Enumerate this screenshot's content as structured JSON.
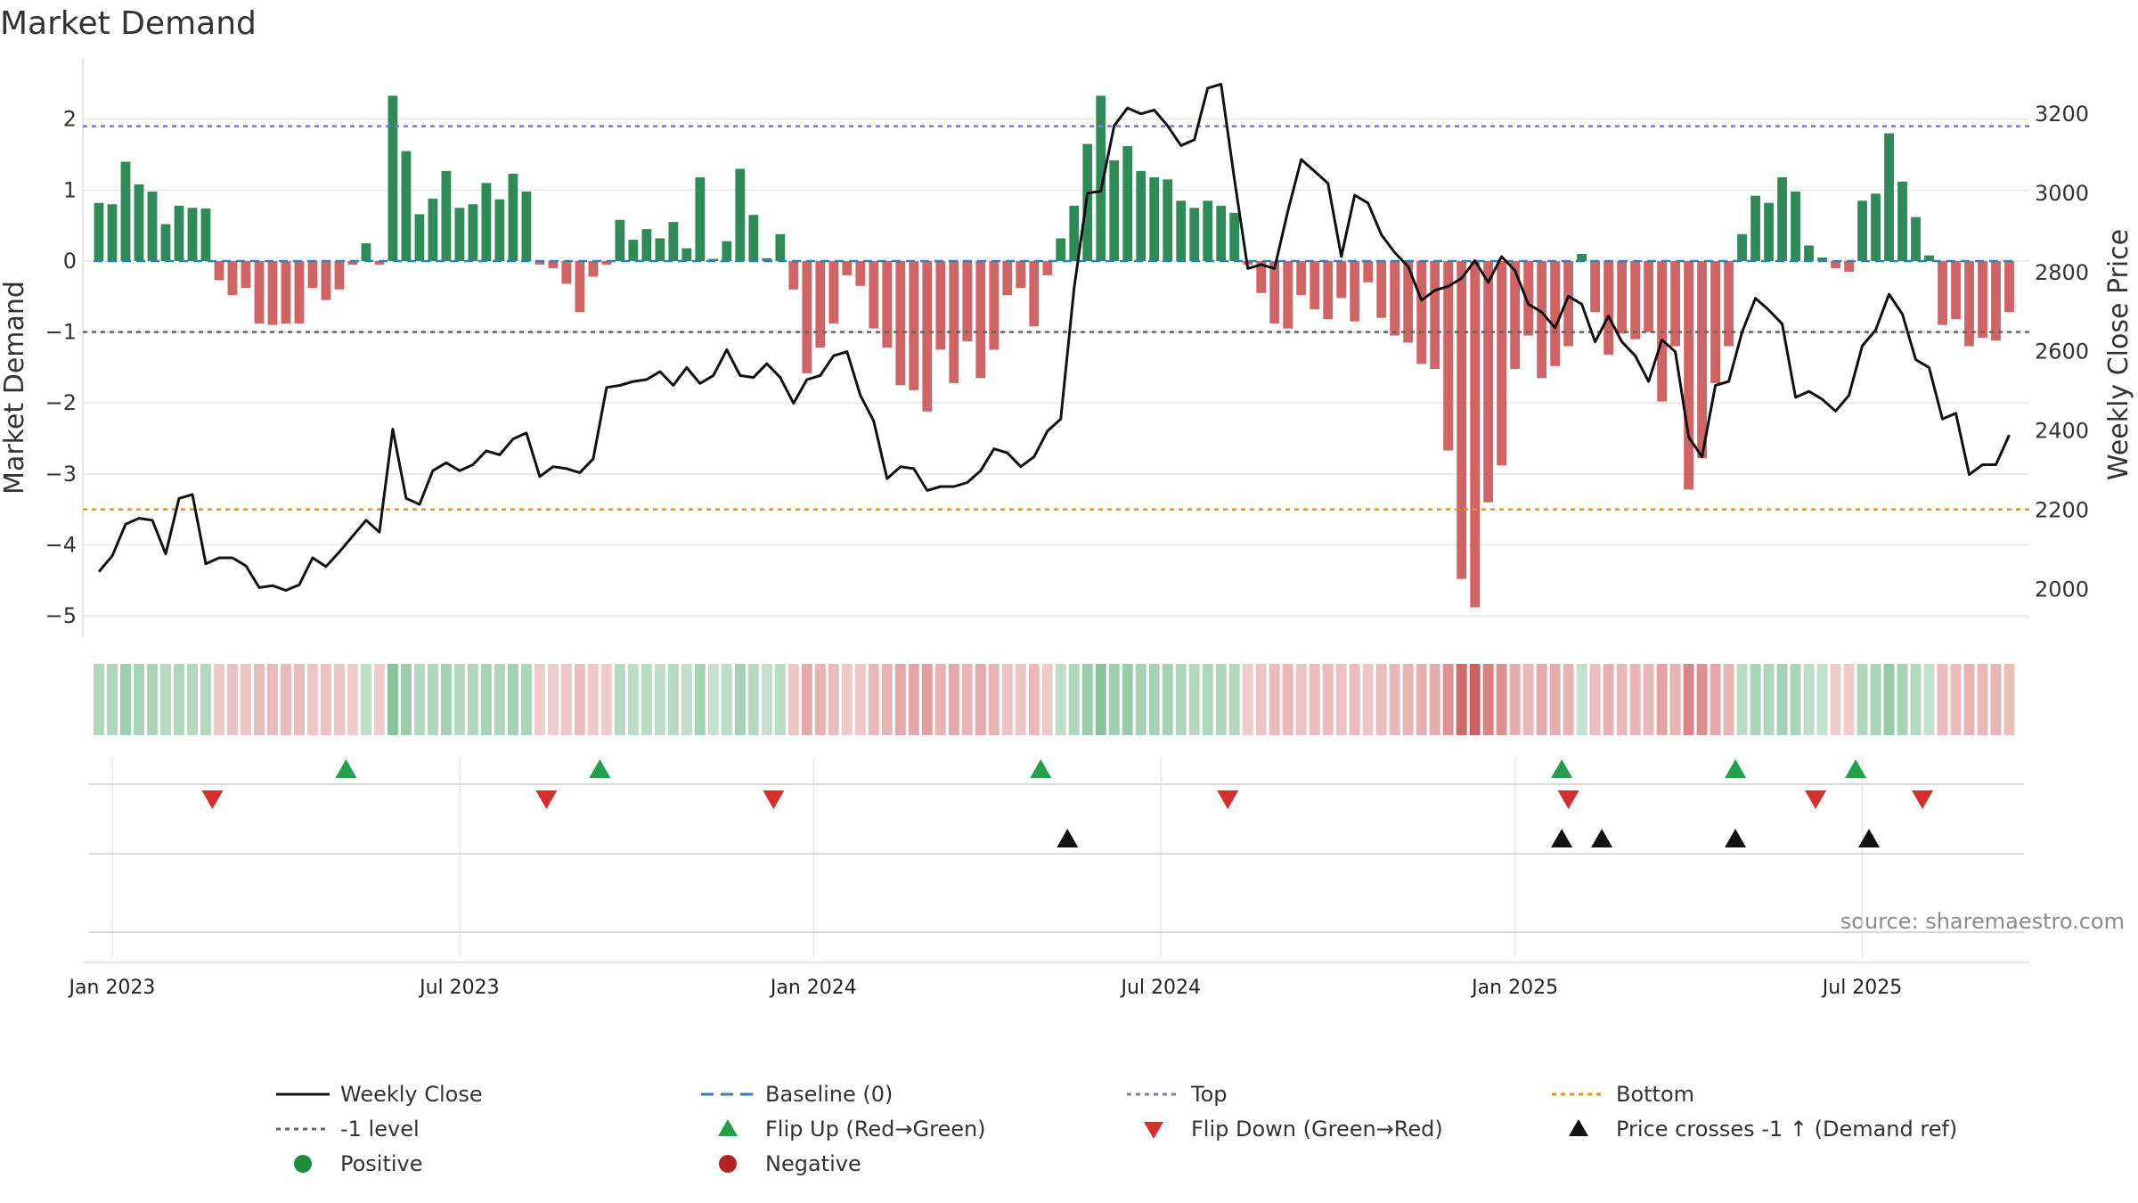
{
  "chart_data": {
    "type": "bar",
    "title": "Market Demand",
    "ylabel_left": "Market Demand",
    "ylabel_right": "Weekly Close Price",
    "ylim_left": [
      -5.3,
      2.8
    ],
    "ylim_right": [
      1880,
      3330
    ],
    "yticks_left": [
      "2",
      "1",
      "0",
      "−1",
      "−2",
      "−3",
      "−4",
      "−5"
    ],
    "ytick_values_left": [
      2,
      1,
      0,
      -1,
      -2,
      -3,
      -4,
      -5
    ],
    "yticks_right": [
      "3200",
      "3000",
      "2800",
      "2600",
      "2400",
      "2200",
      "2000"
    ],
    "ytick_values_right": [
      3200,
      3000,
      2800,
      2600,
      2400,
      2200,
      2000
    ],
    "x_start_week": -1.2,
    "x_end_week": 144.5,
    "date_ticks": [
      {
        "label": "Jan 2023",
        "week": 1
      },
      {
        "label": "Jul 2023",
        "week": 27
      },
      {
        "label": "Jan 2024",
        "week": 53.5
      },
      {
        "label": "Jul 2024",
        "week": 79.5
      },
      {
        "label": "Jan 2025",
        "week": 106
      },
      {
        "label": "Jul 2025",
        "week": 132
      }
    ],
    "reference_lines": [
      {
        "name": "Top",
        "value": 1.9,
        "color": "#7b73d6",
        "dash": "5,5"
      },
      {
        "name": "-1 level",
        "value": -1.0,
        "color": "#666666",
        "dash": "5,5"
      },
      {
        "name": "Bottom",
        "value": -3.5,
        "color": "#e8901a",
        "dash": "5,5"
      }
    ],
    "baseline": {
      "name": "Baseline (0)",
      "value": 0,
      "color": "#2f7fb0"
    },
    "positive_color": "#2e8a57",
    "negative_color": "#d06464",
    "line_color": "#111111",
    "demand": [
      0.82,
      0.8,
      1.4,
      1.08,
      0.98,
      0.52,
      0.78,
      0.75,
      0.74,
      -0.27,
      -0.48,
      -0.38,
      -0.88,
      -0.9,
      -0.88,
      -0.88,
      -0.38,
      -0.55,
      -0.4,
      -0.05,
      0.25,
      -0.05,
      2.33,
      1.55,
      0.66,
      0.88,
      1.27,
      0.75,
      0.8,
      1.1,
      0.87,
      1.23,
      0.98,
      -0.05,
      -0.1,
      -0.32,
      -0.72,
      -0.22,
      -0.05,
      0.58,
      0.3,
      0.45,
      0.32,
      0.55,
      0.18,
      1.18,
      0.03,
      0.28,
      1.3,
      0.65,
      0.04,
      0.38,
      -0.4,
      -1.58,
      -1.22,
      -0.88,
      -0.2,
      -0.35,
      -0.95,
      -1.22,
      -1.75,
      -1.82,
      -2.12,
      -1.25,
      -1.72,
      -1.13,
      -1.65,
      -1.25,
      -0.48,
      -0.38,
      -0.92,
      -0.2,
      0.32,
      0.78,
      1.65,
      2.33,
      1.42,
      1.62,
      1.27,
      1.18,
      1.15,
      0.85,
      0.75,
      0.85,
      0.78,
      0.68,
      -0.05,
      -0.45,
      -0.88,
      -0.95,
      -0.48,
      -0.68,
      -0.82,
      -0.52,
      -0.85,
      -0.3,
      -0.8,
      -1.05,
      -1.15,
      -1.45,
      -1.52,
      -2.67,
      -4.48,
      -4.88,
      -3.4,
      -2.88,
      -1.52,
      -1.05,
      -1.65,
      -1.48,
      -1.2,
      0.1,
      -0.72,
      -1.32,
      -1.02,
      -1.1,
      -1.0,
      -1.98,
      -1.2,
      -3.22,
      -2.78,
      -1.72,
      -1.2,
      0.38,
      0.92,
      0.82,
      1.18,
      0.98,
      0.22,
      0.05,
      -0.1,
      -0.15,
      0.85,
      0.95,
      1.8,
      1.12,
      0.62,
      0.08,
      -0.9,
      -0.82,
      -1.2,
      -1.08,
      -1.12,
      -0.72
    ],
    "price": [
      2045,
      2085,
      2165,
      2180,
      2175,
      2090,
      2230,
      2240,
      2065,
      2080,
      2080,
      2060,
      2005,
      2010,
      1998,
      2012,
      2080,
      2058,
      2095,
      2135,
      2175,
      2145,
      2405,
      2230,
      2215,
      2300,
      2320,
      2300,
      2315,
      2350,
      2340,
      2380,
      2395,
      2285,
      2310,
      2305,
      2295,
      2330,
      2510,
      2515,
      2525,
      2530,
      2550,
      2515,
      2560,
      2520,
      2540,
      2605,
      2540,
      2535,
      2570,
      2535,
      2470,
      2530,
      2540,
      2590,
      2600,
      2490,
      2425,
      2280,
      2310,
      2305,
      2250,
      2260,
      2260,
      2270,
      2300,
      2355,
      2345,
      2310,
      2335,
      2400,
      2430,
      2760,
      3000,
      3005,
      3170,
      3215,
      3200,
      3210,
      3170,
      3120,
      3135,
      3265,
      3275,
      3035,
      2810,
      2820,
      2810,
      2955,
      3085,
      3055,
      3025,
      2840,
      2995,
      2975,
      2895,
      2850,
      2815,
      2730,
      2755,
      2765,
      2785,
      2830,
      2775,
      2840,
      2805,
      2720,
      2700,
      2660,
      2740,
      2720,
      2625,
      2690,
      2625,
      2590,
      2525,
      2630,
      2600,
      2385,
      2335,
      2515,
      2525,
      2650,
      2735,
      2705,
      2670,
      2485,
      2500,
      2480,
      2450,
      2490,
      2615,
      2655,
      2745,
      2695,
      2580,
      2560,
      2430,
      2445,
      2290,
      2315,
      2315,
      2390
    ],
    "flip_up_weeks": [
      18.5,
      37.5,
      70.5,
      109.5,
      122.5,
      131.5
    ],
    "flip_down_weeks": [
      8.5,
      33.5,
      50.5,
      84.5,
      110,
      128.5,
      136.5
    ],
    "price_cross_weeks": [
      72.5,
      109.5,
      112.5,
      122.5,
      132.5
    ],
    "legend": [
      {
        "label": "Weekly Close",
        "marker": "solid-line"
      },
      {
        "label": "Baseline (0)",
        "marker": "dashed-line"
      },
      {
        "label": "Top",
        "marker": "dotted-line"
      },
      {
        "label": "Bottom",
        "marker": "dotted-line"
      },
      {
        "label": "-1 level",
        "marker": "dotted-line"
      },
      {
        "label": "Flip Up (Red→Green)",
        "marker": "triangle-up"
      },
      {
        "label": "Flip Down (Green→Red)",
        "marker": "triangle-down"
      },
      {
        "label": "Price crosses -1 ↑ (Demand ref)",
        "marker": "triangle-up"
      },
      {
        "label": "Positive",
        "marker": "circle"
      },
      {
        "label": "Negative",
        "marker": "circle"
      }
    ],
    "source": "source: sharemaestro.com"
  }
}
